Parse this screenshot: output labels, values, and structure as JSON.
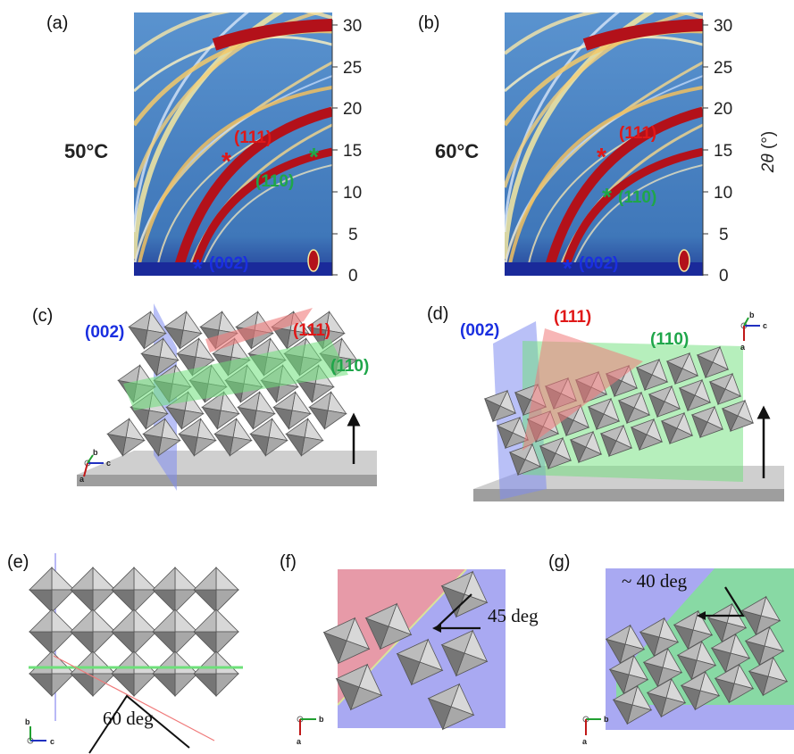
{
  "panels": {
    "a": {
      "label": "(a)",
      "temperature": "50°C"
    },
    "b": {
      "label": "(b)",
      "temperature": "60°C"
    },
    "c": {
      "label": "(c)"
    },
    "d": {
      "label": "(d)"
    },
    "e": {
      "label": "(e)",
      "angle": "60 deg"
    },
    "f": {
      "label": "(f)",
      "angle": "45 deg"
    },
    "g": {
      "label": "(g)",
      "angle": "~ 40 deg"
    }
  },
  "axis": {
    "ticks": [
      "30",
      "25",
      "20",
      "15",
      "10",
      "5",
      "0"
    ],
    "label_symbol": "2θ",
    "label_unit": " (°)"
  },
  "reflections": {
    "r002": "(002)",
    "r111": "(111)",
    "r110": "(110)"
  },
  "crystal_axes": {
    "a": "a",
    "b": "b",
    "c": "c"
  },
  "colors": {
    "detector_bg": "#4a84c2",
    "ring_strong": "#b3111a",
    "reflection_002": "#1a2fe0",
    "reflection_111": "#e01818",
    "reflection_110": "#1fa64a",
    "plane_002": "#7f8cf0",
    "plane_111": "#f07a7a",
    "plane_110": "#6ee07a",
    "octahedron": "#9a9a9a"
  }
}
